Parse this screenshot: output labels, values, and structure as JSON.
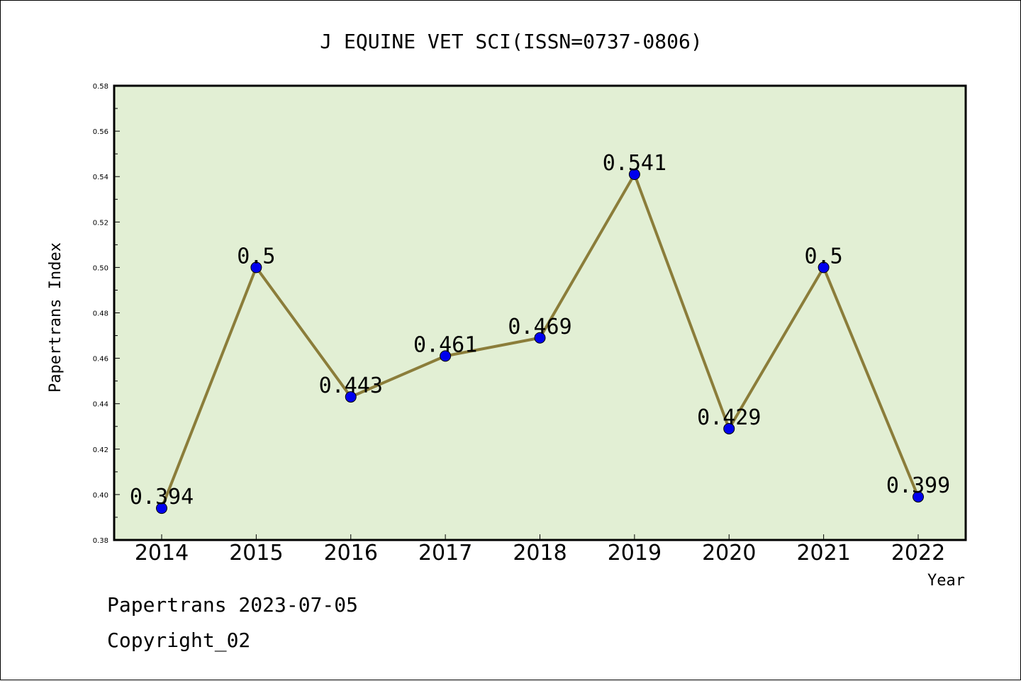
{
  "chart_data": {
    "type": "line",
    "title": "J EQUINE VET SCI(ISSN=0737-0806)",
    "xlabel": "Year",
    "ylabel": "Papertrans Index",
    "categories": [
      "2014",
      "2015",
      "2016",
      "2017",
      "2018",
      "2019",
      "2020",
      "2021",
      "2022"
    ],
    "values": [
      0.394,
      0.5,
      0.443,
      0.461,
      0.469,
      0.541,
      0.429,
      0.5,
      0.399
    ],
    "data_labels": [
      "0.394",
      "0.5",
      "0.443",
      "0.461",
      "0.469",
      "0.541",
      "0.429",
      "0.5",
      "0.399"
    ],
    "ylim": [
      0.38,
      0.58
    ],
    "yticks": [
      "0.38",
      "0.40",
      "0.42",
      "0.44",
      "0.46",
      "0.48",
      "0.50",
      "0.52",
      "0.54",
      "0.56",
      "0.58"
    ],
    "grid": false,
    "colors": {
      "plot_background": "#e2efd4",
      "line": "#8b7d3a",
      "marker": "#0000ee"
    }
  },
  "footer": {
    "line1": "Papertrans 2023-07-05",
    "line2": "Copyright_02"
  }
}
